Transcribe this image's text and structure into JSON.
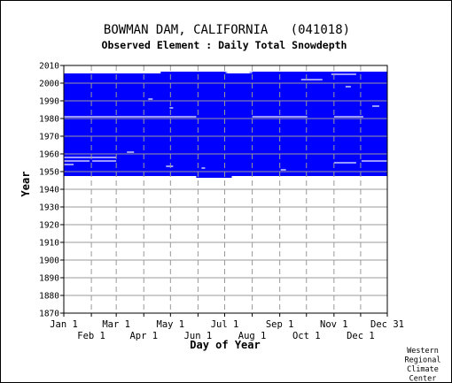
{
  "chart_data": {
    "type": "heatmap",
    "title": "BOWMAN DAM, CALIFORNIA   (041018)",
    "subtitle": "Observed Element : Daily Total Snowdepth",
    "xlabel": "Day of Year",
    "ylabel": "Year",
    "xlim": [
      1,
      365
    ],
    "ylim": [
      1870,
      2010
    ],
    "y_ticks": [
      1870,
      1880,
      1890,
      1900,
      1910,
      1920,
      1930,
      1940,
      1950,
      1960,
      1970,
      1980,
      1990,
      2000,
      2010
    ],
    "x_ticks_upper": [
      {
        "label": "Jan 1",
        "day": 1
      },
      {
        "label": "Mar 1",
        "day": 60
      },
      {
        "label": "May 1",
        "day": 121
      },
      {
        "label": "Jul 1",
        "day": 182
      },
      {
        "label": "Sep 1",
        "day": 244
      },
      {
        "label": "Nov 1",
        "day": 305
      },
      {
        "label": "Dec 31",
        "day": 365
      }
    ],
    "x_ticks_lower": [
      {
        "label": "Feb 1",
        "day": 32
      },
      {
        "label": "Apr 1",
        "day": 91
      },
      {
        "label": "Jun 1",
        "day": 152
      },
      {
        "label": "Aug 1",
        "day": 213
      },
      {
        "label": "Oct 1",
        "day": 274
      },
      {
        "label": "Dec 1",
        "day": 335
      }
    ],
    "grid": true,
    "data_color": "#0000ff",
    "coverage": [
      {
        "start_day": 1,
        "end_day": 365,
        "start_year": 1947.5,
        "end_year": 2005.5
      },
      {
        "start_day": 110,
        "end_day": 185,
        "start_year": 2005.5,
        "end_year": 2006.5
      },
      {
        "start_day": 210,
        "end_day": 365,
        "start_year": 2005.5,
        "end_year": 2006.5
      },
      {
        "start_day": 150,
        "end_day": 190,
        "start_year": 1946.5,
        "end_year": 1947.5
      }
    ],
    "gaps": [
      {
        "start_day": 1,
        "end_day": 150,
        "year": 1981
      },
      {
        "start_day": 213,
        "end_day": 275,
        "year": 1981
      },
      {
        "start_day": 305,
        "end_day": 338,
        "year": 1981
      },
      {
        "start_day": 1,
        "end_day": 60,
        "year": 1958
      },
      {
        "start_day": 1,
        "end_day": 30,
        "year": 1956
      },
      {
        "start_day": 33,
        "end_day": 60,
        "year": 1956
      },
      {
        "start_day": 336,
        "end_day": 365,
        "year": 1956
      },
      {
        "start_day": 305,
        "end_day": 330,
        "year": 1955
      },
      {
        "start_day": 268,
        "end_day": 292,
        "year": 2002
      },
      {
        "start_day": 302,
        "end_day": 330,
        "year": 2005
      },
      {
        "start_day": 183,
        "end_day": 213,
        "year": 2006
      },
      {
        "start_day": 72,
        "end_day": 80,
        "year": 1961
      },
      {
        "start_day": 1,
        "end_day": 12,
        "year": 1954
      },
      {
        "start_day": 116,
        "end_day": 124,
        "year": 1953
      },
      {
        "start_day": 245,
        "end_day": 251,
        "year": 1951
      },
      {
        "start_day": 156,
        "end_day": 160,
        "year": 1952
      },
      {
        "start_day": 120,
        "end_day": 124,
        "year": 1986
      },
      {
        "start_day": 348,
        "end_day": 356,
        "year": 1987
      },
      {
        "start_day": 318,
        "end_day": 324,
        "year": 1998
      },
      {
        "start_day": 96,
        "end_day": 101,
        "year": 1991
      }
    ]
  },
  "credit": [
    "Western",
    "Regional",
    "Climate",
    "Center"
  ]
}
